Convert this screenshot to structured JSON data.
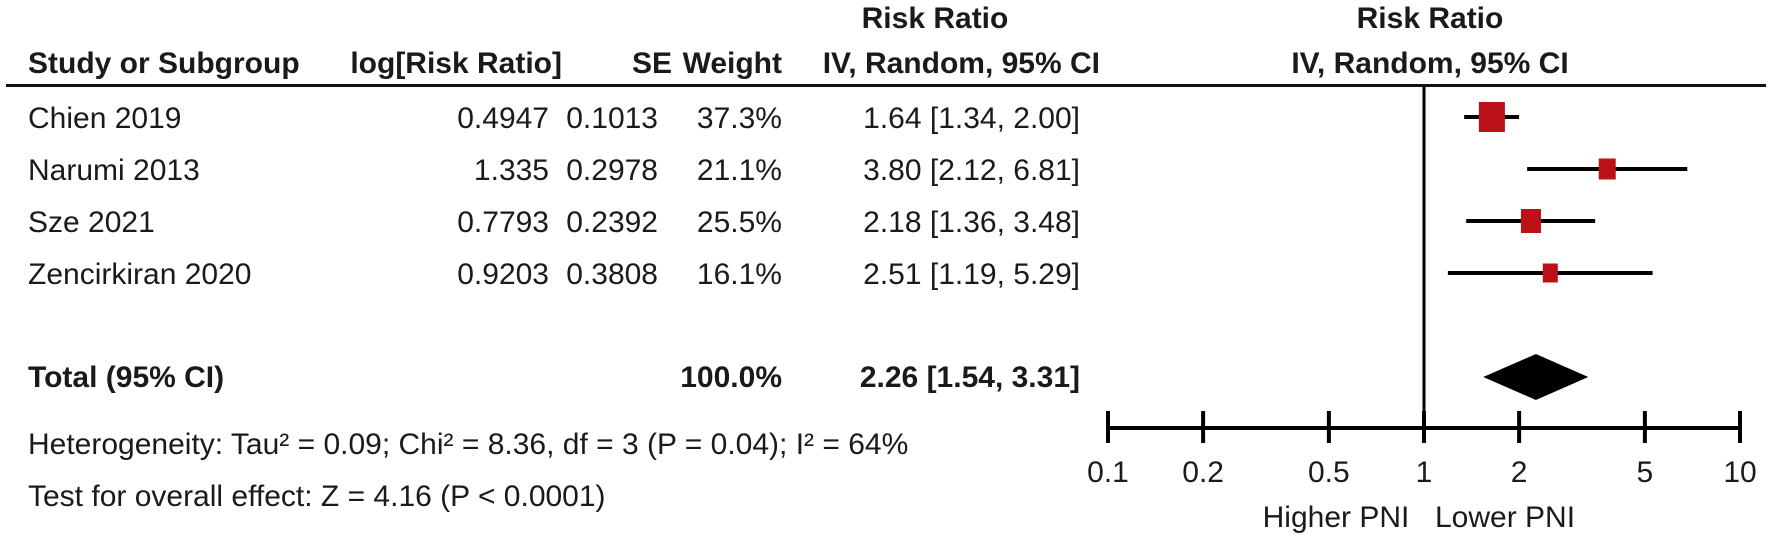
{
  "header": {
    "effect_title_left": "Risk Ratio",
    "effect_title_right": "Risk Ratio",
    "columns": {
      "study": "Study or Subgroup",
      "log_rr": "log[Risk Ratio]",
      "se": "SE",
      "weight": "Weight",
      "ci": "IV, Random, 95% CI",
      "plot_ci": "IV, Random, 95% CI"
    }
  },
  "studies": [
    {
      "study": "Chien 2019",
      "log_rr": "0.4947",
      "se": "0.1013",
      "weight": "37.3%",
      "estimate_ci": "1.64 [1.34, 2.00]"
    },
    {
      "study": "Narumi 2013",
      "log_rr": "1.335",
      "se": "0.2978",
      "weight": "21.1%",
      "estimate_ci": "3.80 [2.12, 6.81]"
    },
    {
      "study": "Sze 2021",
      "log_rr": "0.7793",
      "se": "0.2392",
      "weight": "25.5%",
      "estimate_ci": "2.18 [1.36, 3.48]"
    },
    {
      "study": "Zencirkiran 2020",
      "log_rr": "0.9203",
      "se": "0.3808",
      "weight": "16.1%",
      "estimate_ci": "2.51 [1.19, 5.29]"
    }
  ],
  "total_row": {
    "label": "Total (95% CI)",
    "weight": "100.0%",
    "estimate_ci": "2.26 [1.54, 3.31]"
  },
  "footnotes": {
    "heterogeneity": "Heterogeneity: Tau² = 0.09; Chi² = 8.36, df = 3 (P = 0.04); I² = 64%",
    "overall_effect": "Test for overall effect: Z = 4.16 (P < 0.0001)"
  },
  "axis": {
    "tick_labels": [
      "0.1",
      "0.2",
      "0.5",
      "1",
      "2",
      "5",
      "10"
    ],
    "left_label": "Higher PNI",
    "right_label": "Lower PNI"
  },
  "colors": {
    "marker_square": "#BB1117",
    "diamond": "#000000",
    "line": "#000000",
    "text": "#1a1a1a"
  },
  "chart_data": {
    "type": "scatter",
    "subtype": "forest-plot",
    "title": "Risk Ratio",
    "model": "IV, Random, 95% CI",
    "x_scale": "log10",
    "xlim": [
      0.1,
      10
    ],
    "x_ticks": [
      0.1,
      0.2,
      0.5,
      1,
      2,
      5,
      10
    ],
    "null_line": 1,
    "x_axis_left_label": "Higher PNI",
    "x_axis_right_label": "Lower PNI",
    "series": [
      {
        "name": "Chien 2019",
        "rr": 1.64,
        "ci_low": 1.34,
        "ci_high": 2.0,
        "weight_pct": 37.3
      },
      {
        "name": "Narumi 2013",
        "rr": 3.8,
        "ci_low": 2.12,
        "ci_high": 6.81,
        "weight_pct": 21.1
      },
      {
        "name": "Sze 2021",
        "rr": 2.18,
        "ci_low": 1.36,
        "ci_high": 3.48,
        "weight_pct": 25.5
      },
      {
        "name": "Zencirkiran 2020",
        "rr": 2.51,
        "ci_low": 1.19,
        "ci_high": 5.29,
        "weight_pct": 16.1
      }
    ],
    "total": {
      "name": "Total (95% CI)",
      "rr": 2.26,
      "ci_low": 1.54,
      "ci_high": 3.31,
      "weight_pct": 100.0
    },
    "heterogeneity": {
      "tau2": 0.09,
      "chi2": 8.36,
      "df": 3,
      "p": 0.04,
      "i2_pct": 64
    },
    "overall_effect": {
      "z": 4.16,
      "p": "< 0.0001"
    }
  }
}
